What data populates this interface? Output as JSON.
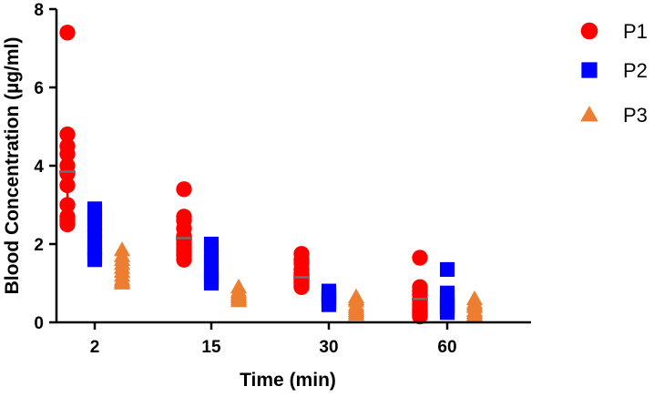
{
  "chart_data": {
    "type": "scatter",
    "xlabel": "Time (min)",
    "ylabel": "Blood Concentration (µg/ml)",
    "categories": [
      "2",
      "15",
      "30",
      "60"
    ],
    "ylim": [
      0,
      8
    ],
    "yticks": [
      0,
      2,
      4,
      6,
      8
    ],
    "grid": false,
    "legend_position": "top-right",
    "series": [
      {
        "name": "P1",
        "marker": "circle",
        "color": "#ff0000",
        "points": [
          [
            7.4,
            4.8,
            4.5,
            4.3,
            4.0,
            3.8,
            3.5,
            3.0,
            2.7,
            2.6,
            2.5
          ],
          [
            3.4,
            2.7,
            2.6,
            2.4,
            2.2,
            2.1,
            2.0,
            1.9,
            1.8,
            1.7,
            1.6
          ],
          [
            1.75,
            1.6,
            1.5,
            1.35,
            1.25,
            1.2,
            1.1,
            1.05,
            1.0,
            0.95,
            0.9
          ],
          [
            1.65,
            0.9,
            0.8,
            0.7,
            0.55,
            0.45,
            0.35,
            0.3,
            0.25,
            0.2,
            0.15
          ]
        ],
        "median": [
          3.85,
          2.15,
          1.15,
          0.6
        ],
        "range": [
          [
            2.5,
            4.8
          ],
          [
            1.6,
            2.7
          ],
          [
            0.9,
            1.6
          ],
          [
            0.15,
            0.9
          ]
        ]
      },
      {
        "name": "P2",
        "marker": "square",
        "color": "#0000ff",
        "points": [
          [
            2.9,
            2.8,
            2.65,
            2.5,
            2.35,
            2.2,
            2.05,
            1.9,
            1.8,
            1.7,
            1.6
          ],
          [
            2.0,
            1.85,
            1.7,
            1.55,
            1.4,
            1.3,
            1.2,
            1.1,
            1.05,
            1.0
          ],
          [
            0.8,
            0.75,
            0.7,
            0.65,
            0.6,
            0.55,
            0.5,
            0.45
          ],
          [
            1.35,
            0.75,
            0.65,
            0.55,
            0.45,
            0.4,
            0.35,
            0.3,
            0.25
          ]
        ]
      },
      {
        "name": "P3",
        "marker": "triangle",
        "color": "#ed7d31",
        "points": [
          [
            1.85,
            1.7,
            1.6,
            1.5,
            1.4,
            1.3,
            1.2,
            1.1,
            1.05,
            1.0
          ],
          [
            0.9,
            0.8,
            0.75,
            0.7,
            0.65,
            0.6,
            0.55
          ],
          [
            0.65,
            0.6,
            0.55,
            0.45,
            0.4,
            0.35,
            0.3,
            0.25,
            0.2
          ],
          [
            0.6,
            0.5,
            0.45,
            0.4,
            0.3,
            0.25,
            0.2,
            0.15
          ]
        ]
      }
    ]
  }
}
